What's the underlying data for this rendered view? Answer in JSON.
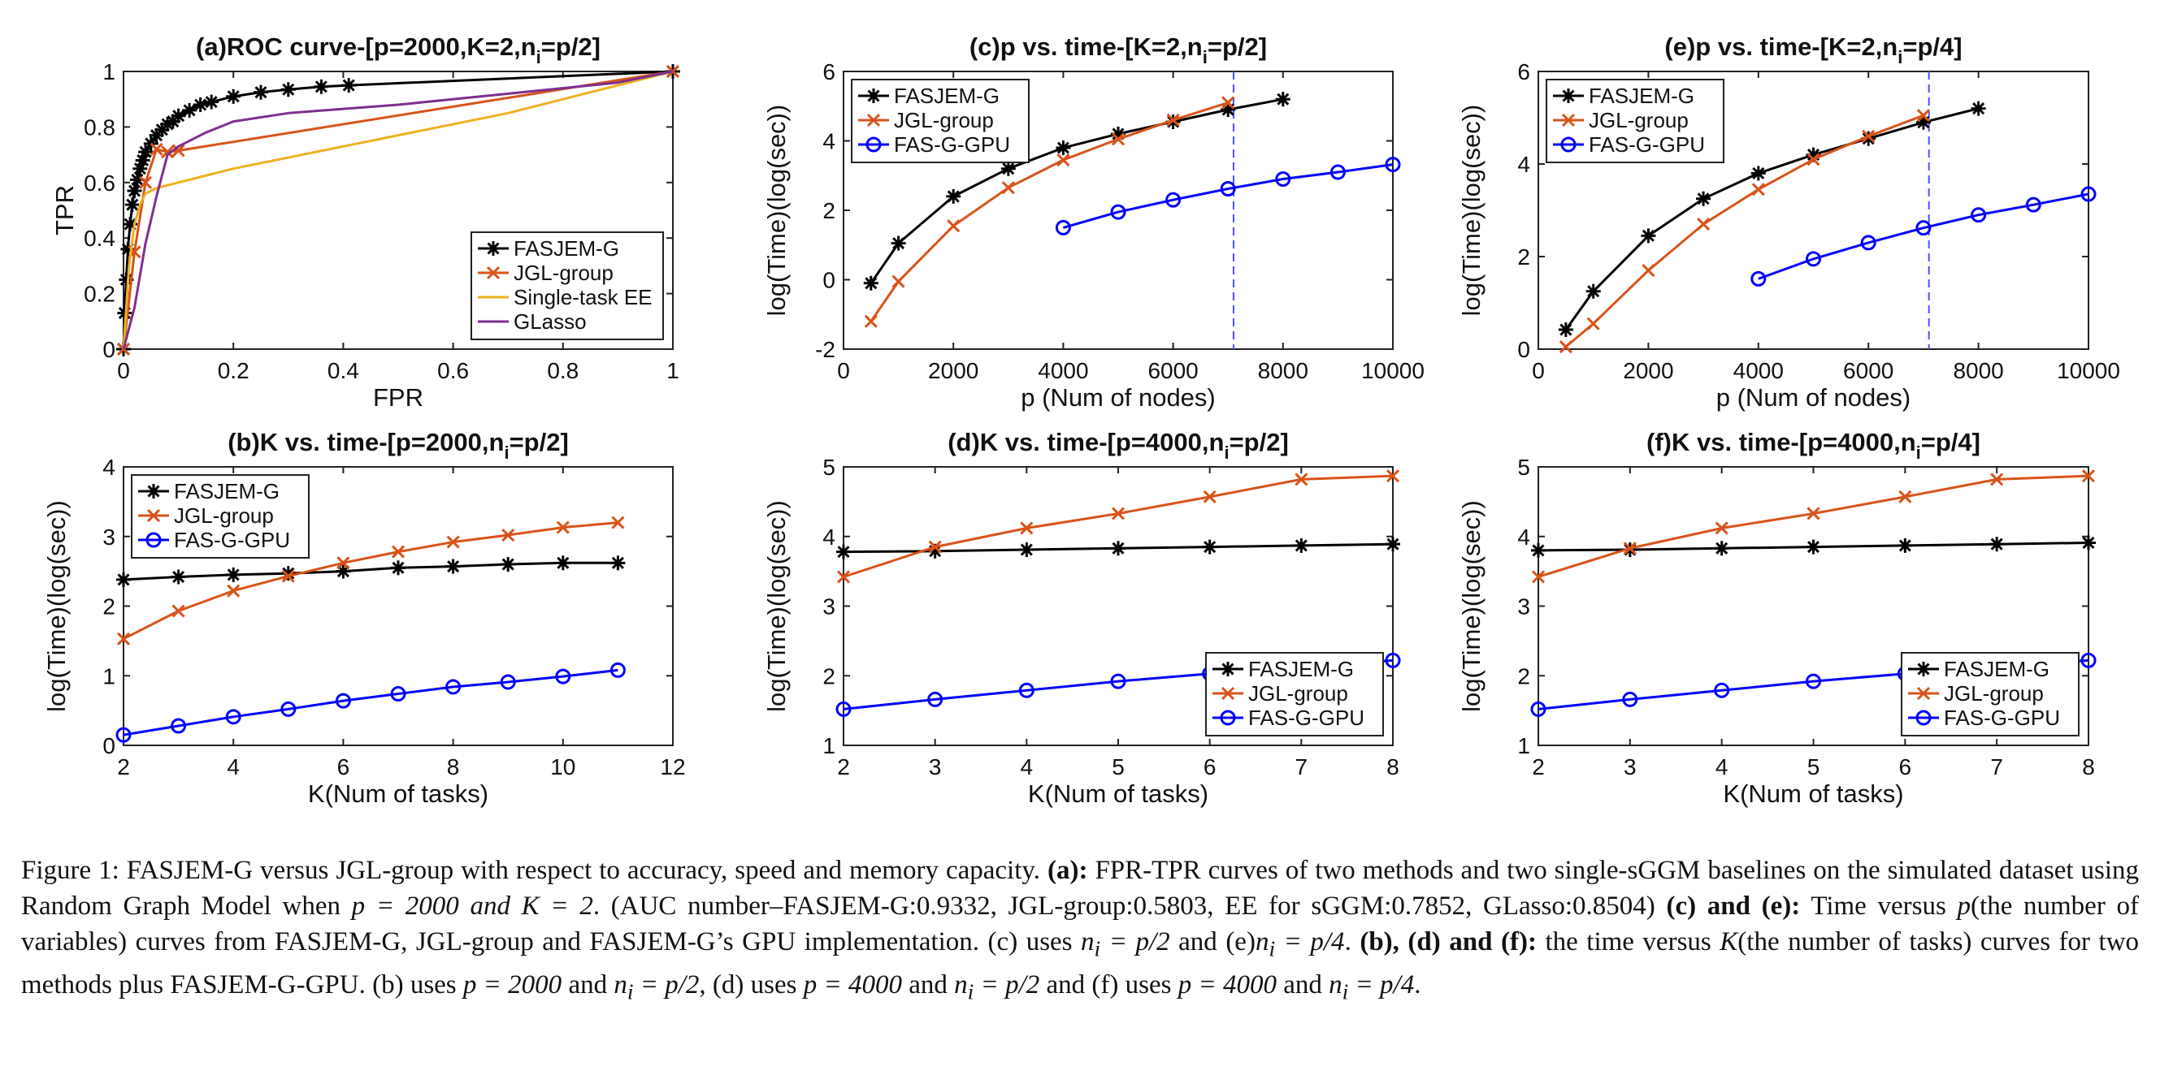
{
  "chart_data": [
    {
      "id": "a",
      "type": "line",
      "title": "(a)ROC curve-[p=2000,K=2,n",
      "title_sub": "i",
      "title_tail": "=p/2]",
      "xlabel": "FPR",
      "ylabel": "TPR",
      "xlim": [
        0,
        1
      ],
      "ylim": [
        0,
        1
      ],
      "xticks": [
        0,
        0.2,
        0.4,
        0.6,
        0.8,
        1
      ],
      "xtick_labels": [
        "0",
        "0.2",
        "0.4",
        "0.6",
        "0.8",
        "1"
      ],
      "yticks": [
        0,
        0.2,
        0.4,
        0.6,
        0.8,
        1
      ],
      "ytick_labels": [
        "0",
        "0.2",
        "0.4",
        "0.6",
        "0.8",
        "1"
      ],
      "legend_position": "bottom-right",
      "series": [
        {
          "name": "FASJEM-G",
          "color": "#000000",
          "marker": "star",
          "x": [
            0,
            0.002,
            0.005,
            0.008,
            0.012,
            0.016,
            0.02,
            0.025,
            0.03,
            0.035,
            0.04,
            0.05,
            0.06,
            0.07,
            0.08,
            0.09,
            0.1,
            0.12,
            0.14,
            0.16,
            0.2,
            0.25,
            0.3,
            0.36,
            0.41,
            1
          ],
          "y": [
            0,
            0.13,
            0.25,
            0.36,
            0.45,
            0.52,
            0.57,
            0.61,
            0.65,
            0.68,
            0.71,
            0.74,
            0.77,
            0.79,
            0.81,
            0.82,
            0.84,
            0.86,
            0.88,
            0.89,
            0.91,
            0.925,
            0.935,
            0.945,
            0.95,
            1
          ]
        },
        {
          "name": "JGL-group",
          "color": "#D95319",
          "marker": "x",
          "x": [
            0,
            0.02,
            0.04,
            0.06,
            0.08,
            0.1,
            1
          ],
          "y": [
            0,
            0.35,
            0.6,
            0.72,
            0.71,
            0.715,
            1
          ]
        },
        {
          "name": "Single-task EE",
          "color": "#EDB120",
          "marker": "none",
          "x": [
            0,
            0.01,
            0.02,
            0.03,
            0.04,
            0.06,
            0.1,
            0.2,
            0.4,
            0.7,
            1
          ],
          "y": [
            0,
            0.3,
            0.45,
            0.52,
            0.56,
            0.58,
            0.6,
            0.65,
            0.73,
            0.85,
            1
          ]
        },
        {
          "name": "GLasso",
          "color": "#7E2F8E",
          "marker": "none",
          "x": [
            0,
            0.02,
            0.04,
            0.06,
            0.08,
            0.1,
            0.15,
            0.2,
            0.3,
            0.5,
            0.7,
            0.9,
            1
          ],
          "y": [
            0,
            0.15,
            0.38,
            0.55,
            0.7,
            0.73,
            0.78,
            0.82,
            0.85,
            0.88,
            0.92,
            0.96,
            1
          ]
        }
      ]
    },
    {
      "id": "c",
      "type": "line",
      "title": "(c)p vs. time-[K=2,n",
      "title_sub": "i",
      "title_tail": "=p/2]",
      "xlabel": "p (Num of nodes)",
      "ylabel": "log(Time)(log(sec))",
      "xlim": [
        0,
        10000
      ],
      "ylim": [
        -2,
        6
      ],
      "xticks": [
        0,
        2000,
        4000,
        6000,
        8000,
        10000
      ],
      "xtick_labels": [
        "0",
        "2000",
        "4000",
        "6000",
        "8000",
        "10000"
      ],
      "yticks": [
        -2,
        0,
        2,
        4,
        6
      ],
      "ytick_labels": [
        "-2",
        "0",
        "2",
        "4",
        "6"
      ],
      "vline": 7100,
      "legend_position": "top-left",
      "series": [
        {
          "name": "FASJEM-G",
          "color": "#000000",
          "marker": "star",
          "x": [
            500,
            1000,
            2000,
            3000,
            4000,
            5000,
            6000,
            7000,
            8000
          ],
          "y": [
            -0.1,
            1.05,
            2.4,
            3.2,
            3.8,
            4.2,
            4.55,
            4.9,
            5.2
          ]
        },
        {
          "name": "JGL-group",
          "color": "#D95319",
          "marker": "x",
          "x": [
            500,
            1000,
            2000,
            3000,
            4000,
            5000,
            6000,
            7000
          ],
          "y": [
            -1.2,
            -0.05,
            1.55,
            2.65,
            3.45,
            4.05,
            4.6,
            5.1
          ]
        },
        {
          "name": "FAS-G-GPU",
          "color": "#0000FF",
          "marker": "circle",
          "x": [
            4000,
            5000,
            6000,
            7000,
            8000,
            9000,
            10000
          ],
          "y": [
            1.5,
            1.95,
            2.3,
            2.62,
            2.9,
            3.1,
            3.32
          ]
        }
      ]
    },
    {
      "id": "e",
      "type": "line",
      "title": "(e)p vs. time-[K=2,n",
      "title_sub": "i",
      "title_tail": "=p/4]",
      "xlabel": "p (Num of nodes)",
      "ylabel": "log(Time)(log(sec))",
      "xlim": [
        0,
        10000
      ],
      "ylim": [
        0,
        6
      ],
      "xticks": [
        0,
        2000,
        4000,
        6000,
        8000,
        10000
      ],
      "xtick_labels": [
        "0",
        "2000",
        "4000",
        "6000",
        "8000",
        "10000"
      ],
      "yticks": [
        0,
        2,
        4,
        6
      ],
      "ytick_labels": [
        "0",
        "2",
        "4",
        "6"
      ],
      "vline": 7100,
      "legend_position": "top-left",
      "series": [
        {
          "name": "FASJEM-G",
          "color": "#000000",
          "marker": "star",
          "x": [
            500,
            1000,
            2000,
            3000,
            4000,
            5000,
            6000,
            7000,
            8000
          ],
          "y": [
            0.42,
            1.25,
            2.45,
            3.25,
            3.8,
            4.2,
            4.55,
            4.9,
            5.2
          ]
        },
        {
          "name": "JGL-group",
          "color": "#D95319",
          "marker": "x",
          "x": [
            500,
            1000,
            2000,
            3000,
            4000,
            5000,
            6000,
            7000
          ],
          "y": [
            0.05,
            0.55,
            1.7,
            2.7,
            3.45,
            4.1,
            4.6,
            5.05
          ]
        },
        {
          "name": "FAS-G-GPU",
          "color": "#0000FF",
          "marker": "circle",
          "x": [
            4000,
            5000,
            6000,
            7000,
            8000,
            9000,
            10000
          ],
          "y": [
            1.52,
            1.95,
            2.3,
            2.62,
            2.9,
            3.12,
            3.35
          ]
        }
      ]
    },
    {
      "id": "b",
      "type": "line",
      "title": "(b)K vs. time-[p=2000,n",
      "title_sub": "i",
      "title_tail": "=p/2]",
      "xlabel": "K(Num of tasks)",
      "ylabel": "log(Time)(log(sec))",
      "xlim": [
        2,
        12
      ],
      "ylim": [
        0,
        4
      ],
      "xticks": [
        2,
        4,
        6,
        8,
        10,
        12
      ],
      "xtick_labels": [
        "2",
        "4",
        "6",
        "8",
        "10",
        "12"
      ],
      "yticks": [
        0,
        1,
        2,
        3,
        4
      ],
      "ytick_labels": [
        "0",
        "1",
        "2",
        "3",
        "4"
      ],
      "legend_position": "top-left",
      "series": [
        {
          "name": "FASJEM-G",
          "color": "#000000",
          "marker": "star",
          "x": [
            2,
            3,
            4,
            5,
            6,
            7,
            8,
            9,
            10,
            11
          ],
          "y": [
            2.38,
            2.42,
            2.45,
            2.47,
            2.5,
            2.55,
            2.57,
            2.6,
            2.62,
            2.62
          ]
        },
        {
          "name": "JGL-group",
          "color": "#D95319",
          "marker": "x",
          "x": [
            2,
            3,
            4,
            5,
            6,
            7,
            8,
            9,
            10,
            11
          ],
          "y": [
            1.53,
            1.93,
            2.22,
            2.43,
            2.62,
            2.78,
            2.92,
            3.02,
            3.13,
            3.2
          ]
        },
        {
          "name": "FAS-G-GPU",
          "color": "#0000FF",
          "marker": "circle",
          "x": [
            2,
            3,
            4,
            5,
            6,
            7,
            8,
            9,
            10,
            11
          ],
          "y": [
            0.15,
            0.28,
            0.41,
            0.52,
            0.64,
            0.74,
            0.84,
            0.91,
            0.99,
            1.08
          ]
        }
      ]
    },
    {
      "id": "d",
      "type": "line",
      "title": "(d)K vs. time-[p=4000,n",
      "title_sub": "i",
      "title_tail": "=p/2]",
      "xlabel": "K(Num of tasks)",
      "ylabel": "log(Time)(log(sec))",
      "xlim": [
        2,
        8
      ],
      "ylim": [
        1,
        5
      ],
      "xticks": [
        2,
        3,
        4,
        5,
        6,
        7,
        8
      ],
      "xtick_labels": [
        "2",
        "3",
        "4",
        "5",
        "6",
        "7",
        "8"
      ],
      "yticks": [
        1,
        2,
        3,
        4,
        5
      ],
      "ytick_labels": [
        "1",
        "2",
        "3",
        "4",
        "5"
      ],
      "legend_position": "bottom-right",
      "series": [
        {
          "name": "FASJEM-G",
          "color": "#000000",
          "marker": "star",
          "x": [
            2,
            3,
            4,
            5,
            6,
            7,
            8
          ],
          "y": [
            3.78,
            3.79,
            3.81,
            3.83,
            3.85,
            3.87,
            3.89
          ]
        },
        {
          "name": "JGL-group",
          "color": "#D95319",
          "marker": "x",
          "x": [
            2,
            3,
            4,
            5,
            6,
            7,
            8
          ],
          "y": [
            3.42,
            3.85,
            4.12,
            4.33,
            4.57,
            4.82,
            4.87
          ]
        },
        {
          "name": "FAS-G-GPU",
          "color": "#0000FF",
          "marker": "circle",
          "x": [
            2,
            3,
            4,
            5,
            6,
            7,
            8
          ],
          "y": [
            1.52,
            1.66,
            1.79,
            1.92,
            2.03,
            2.13,
            2.22
          ]
        }
      ]
    },
    {
      "id": "f",
      "type": "line",
      "title": "(f)K vs. time-[p=4000,n",
      "title_sub": "i",
      "title_tail": "=p/4]",
      "xlabel": "K(Num of tasks)",
      "ylabel": "log(Time)(log(sec))",
      "xlim": [
        2,
        8
      ],
      "ylim": [
        1,
        5
      ],
      "xticks": [
        2,
        3,
        4,
        5,
        6,
        7,
        8
      ],
      "xtick_labels": [
        "2",
        "3",
        "4",
        "5",
        "6",
        "7",
        "8"
      ],
      "yticks": [
        1,
        2,
        3,
        4,
        5
      ],
      "ytick_labels": [
        "1",
        "2",
        "3",
        "4",
        "5"
      ],
      "legend_position": "bottom-right",
      "series": [
        {
          "name": "FASJEM-G",
          "color": "#000000",
          "marker": "star",
          "x": [
            2,
            3,
            4,
            5,
            6,
            7,
            8
          ],
          "y": [
            3.8,
            3.81,
            3.83,
            3.85,
            3.87,
            3.89,
            3.91
          ]
        },
        {
          "name": "JGL-group",
          "color": "#D95319",
          "marker": "x",
          "x": [
            2,
            3,
            4,
            5,
            6,
            7,
            8
          ],
          "y": [
            3.42,
            3.83,
            4.12,
            4.33,
            4.57,
            4.82,
            4.87
          ]
        },
        {
          "name": "FAS-G-GPU",
          "color": "#0000FF",
          "marker": "circle",
          "x": [
            2,
            3,
            4,
            5,
            6,
            7,
            8
          ],
          "y": [
            1.52,
            1.66,
            1.79,
            1.92,
            2.03,
            2.13,
            2.22
          ]
        }
      ]
    }
  ],
  "caption": {
    "l1_a": "Figure 1: FASJEM-G versus JGL-group with respect to accuracy, speed and memory capacity. ",
    "l1_b": "(a):",
    "l1_c": " FPR-TPR curves of two methods and two single-sGGM baselines on the simulated dataset using Random Graph Model when ",
    "l1_d": "p = 2000 and K = 2",
    "l1_e": ". (AUC number–FASJEM-G:0.9332, JGL-group:0.5803, EE for sGGM:0.7852, GLasso:0.8504) ",
    "l2_b": "(c) and (e):",
    "l2_c": " Time versus ",
    "l2_d": "p",
    "l2_e": "(the number of variables) curves from FASJEM-G, JGL-group and FASJEM-G’s GPU implementation. (c) uses ",
    "l2_f": "n",
    "l2_g": "i",
    "l2_h": " = p/2",
    "l2_i": " and (e)",
    "l2_j": "n",
    "l2_k": "i",
    "l2_l": " = p/4",
    "l2_m": ". ",
    "l3_b": "(b), (d) and (f):",
    "l3_c": " the time versus ",
    "l3_d": "K",
    "l3_e": "(the number of tasks) curves for two methods plus FASJEM-G-GPU. (b) uses ",
    "l3_f": "p = 2000",
    "l3_g": " and ",
    "l3_h": "n",
    "l3_i": "i",
    "l3_j": " = p/2",
    "l3_k": ", (d) uses ",
    "l3_l": "p = 4000",
    "l3_m": " and ",
    "l3_n": "n",
    "l3_o": "i",
    "l3_p": " = p/2",
    "l3_q": " and (f) uses ",
    "l3_r": "p = 4000",
    "l3_s": " and ",
    "l3_t": "n",
    "l3_u": "i",
    "l3_v": " = p/4",
    "l3_w": "."
  }
}
